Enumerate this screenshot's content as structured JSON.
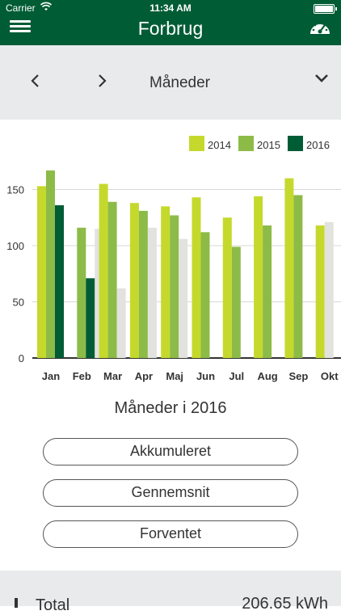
{
  "status": {
    "carrier": "Carrier",
    "time": "11:34 AM"
  },
  "header": {
    "title": "Forbrug",
    "menu_icon": "hamburger-icon",
    "right_icon": "gauge-icon"
  },
  "selector": {
    "label": "Måneder",
    "prev_icon": "chevron-left-icon",
    "next_icon": "chevron-right-icon",
    "dropdown_icon": "chevron-down-icon"
  },
  "colors": {
    "brand": "#005c35",
    "y2014": "#c5d92d",
    "y2015": "#8dbb48",
    "y2016": "#005c35",
    "forecast": "#e2e2de"
  },
  "chart_data": {
    "type": "bar",
    "categories": [
      "Jan",
      "Feb",
      "Mar",
      "Apr",
      "Maj",
      "Jun",
      "Jul",
      "Aug",
      "Sep",
      "Okt"
    ],
    "series": [
      {
        "name": "2014",
        "values": [
          153,
          null,
          155,
          138,
          135,
          143,
          125,
          144,
          160,
          118
        ]
      },
      {
        "name": "2015",
        "values": [
          167,
          116,
          139,
          131,
          127,
          112,
          99,
          118,
          145,
          null
        ]
      },
      {
        "name": "2016",
        "values": [
          136,
          71,
          null,
          null,
          null,
          null,
          null,
          null,
          null,
          null
        ]
      },
      {
        "values": [
          null,
          115,
          62,
          116,
          106,
          null,
          null,
          null,
          null,
          121
        ]
      }
    ],
    "yticks": [
      0,
      50,
      100,
      150
    ],
    "ylim": [
      0,
      180
    ],
    "legend_position": "top-right",
    "grid": true
  },
  "summary": {
    "title": "Måneder i 2016",
    "buttons": [
      "Akkumuleret",
      "Gennemsnit",
      "Forventet"
    ]
  },
  "footer": {
    "label": "Total",
    "value": "206.65 kWh"
  }
}
